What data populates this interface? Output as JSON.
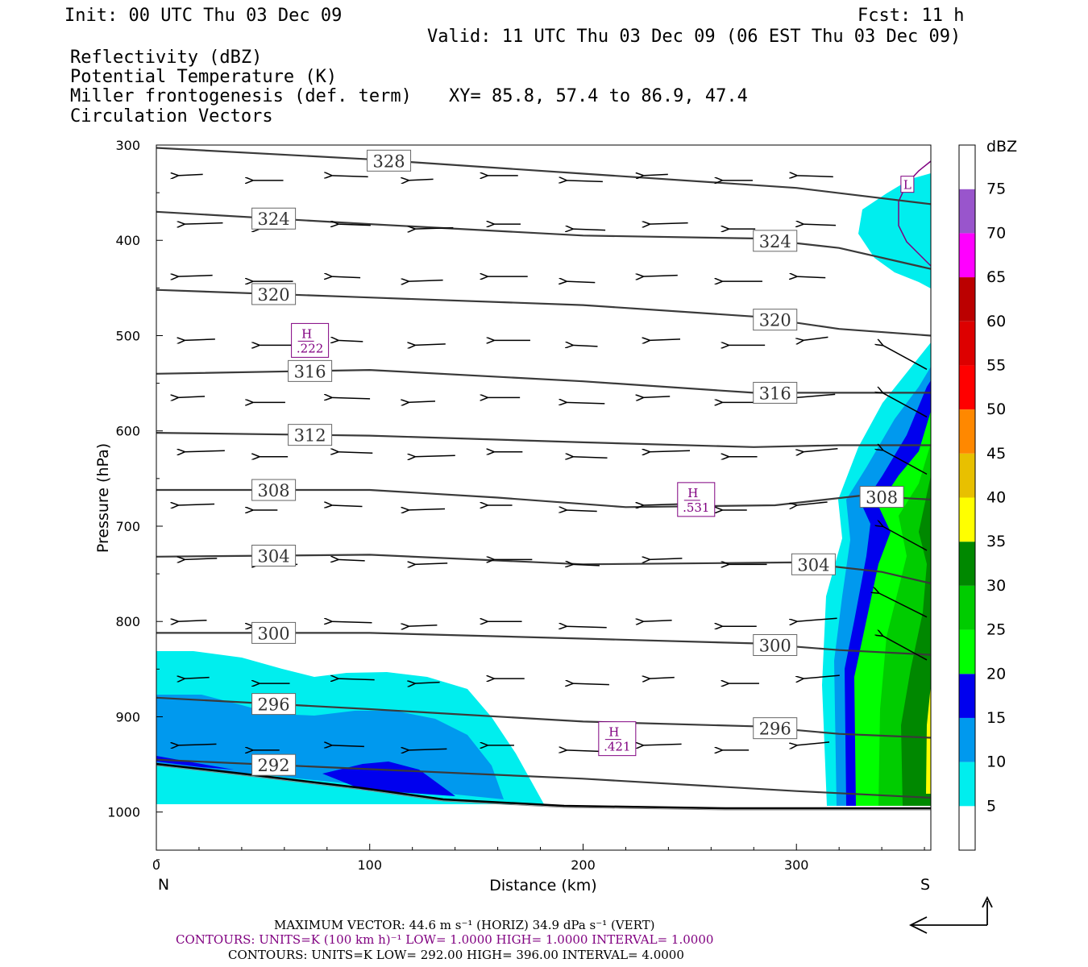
{
  "header": {
    "init": "Init: 00 UTC Thu 03 Dec 09",
    "fcst": "Fcst:   11 h",
    "valid": "Valid: 11 UTC Thu 03 Dec 09 (06 EST Thu 03 Dec 09)",
    "field1": "Reflectivity (dBZ)",
    "field2": "Potential Temperature (K)",
    "field3": "Miller frontogenesis (def. term)",
    "field4": "Circulation Vectors",
    "xy": "XY=  85.8, 57.4 to  86.9, 47.4"
  },
  "colors": {
    "field2": "#606060",
    "field3": "#800080",
    "theta_contour": "#3a3a3a"
  },
  "footer": {
    "max_vector": "MAXIMUM VECTOR:  44.6 m s⁻¹ (HORIZ)          34.9 dPa s⁻¹ (VERT)",
    "contours1": "CONTOURS:  UNITS=K (100 km h)⁻¹  LOW=   1.0000        HIGH=   1.0000        INTERVAL=    1.0000",
    "contours2": "CONTOURS:  UNITS=K  LOW=   292.00         HIGH=   396.00         INTERVAL=    4.0000"
  },
  "chart_data": {
    "type": "contour",
    "xlabel": "Distance (km)",
    "ylabel": "Pressure (hPa)",
    "xlim": [
      0,
      363
    ],
    "ylim": [
      1040,
      300
    ],
    "x_ticks": [
      0,
      100,
      200,
      300
    ],
    "y_ticks": [
      300,
      400,
      500,
      600,
      700,
      800,
      900,
      1000
    ],
    "x_endpoints": {
      "left": "N",
      "right": "S"
    },
    "colorbar": {
      "title": "dBZ",
      "levels": [
        5,
        10,
        15,
        20,
        25,
        30,
        35,
        40,
        45,
        50,
        55,
        60,
        65,
        70,
        75
      ],
      "colors": [
        "#ffffff",
        "#00eeee",
        "#0099ee",
        "#0000ee",
        "#00ff00",
        "#00cc00",
        "#008800",
        "#ffff00",
        "#e8c000",
        "#ff8800",
        "#ff0000",
        "#dd0000",
        "#bb0000",
        "#ff00ff",
        "#9955cc",
        "#ffffff"
      ]
    },
    "theta_contours": [
      {
        "value": 328,
        "label_x": 109,
        "points": [
          [
            0,
            303
          ],
          [
            100,
            315
          ],
          [
            200,
            330
          ],
          [
            300,
            345
          ],
          [
            363,
            362
          ]
        ]
      },
      {
        "value": 324,
        "label_x": 55,
        "extra_label_x": 290,
        "points": [
          [
            0,
            370
          ],
          [
            100,
            383
          ],
          [
            200,
            395
          ],
          [
            280,
            398
          ],
          [
            320,
            408
          ],
          [
            363,
            430
          ]
        ]
      },
      {
        "value": 320,
        "label_x": 55,
        "extra_label_x": 290,
        "points": [
          [
            0,
            452
          ],
          [
            100,
            460
          ],
          [
            200,
            468
          ],
          [
            280,
            480
          ],
          [
            320,
            493
          ],
          [
            363,
            500
          ]
        ]
      },
      {
        "value": 316,
        "label_x": 72,
        "extra_label_x": 290,
        "points": [
          [
            0,
            540
          ],
          [
            100,
            536
          ],
          [
            200,
            548
          ],
          [
            280,
            560
          ],
          [
            363,
            560
          ]
        ]
      },
      {
        "value": 312,
        "label_x": 72,
        "points": [
          [
            0,
            602
          ],
          [
            100,
            605
          ],
          [
            200,
            612
          ],
          [
            280,
            617
          ],
          [
            320,
            615
          ],
          [
            363,
            615
          ]
        ]
      },
      {
        "value": 308,
        "label_x": 55,
        "extra_label_x": 340,
        "points": [
          [
            0,
            662
          ],
          [
            100,
            662
          ],
          [
            160,
            670
          ],
          [
            220,
            680
          ],
          [
            290,
            678
          ],
          [
            330,
            668
          ],
          [
            363,
            672
          ]
        ]
      },
      {
        "value": 304,
        "label_x": 55,
        "extra_label_x": 308,
        "points": [
          [
            0,
            732
          ],
          [
            100,
            730
          ],
          [
            200,
            740
          ],
          [
            300,
            738
          ],
          [
            340,
            748
          ],
          [
            363,
            760
          ]
        ]
      },
      {
        "value": 300,
        "label_x": 55,
        "extra_label_x": 290,
        "points": [
          [
            0,
            812
          ],
          [
            100,
            812
          ],
          [
            200,
            818
          ],
          [
            280,
            823
          ],
          [
            320,
            830
          ],
          [
            363,
            835
          ]
        ]
      },
      {
        "value": 296,
        "label_x": 55,
        "extra_label_x": 290,
        "points": [
          [
            0,
            880
          ],
          [
            100,
            892
          ],
          [
            200,
            905
          ],
          [
            280,
            910
          ],
          [
            320,
            918
          ],
          [
            363,
            922
          ]
        ]
      },
      {
        "value": 292,
        "label_x": 55,
        "points": [
          [
            0,
            945
          ],
          [
            100,
            955
          ],
          [
            200,
            965
          ],
          [
            300,
            978
          ],
          [
            363,
            985
          ]
        ]
      }
    ],
    "frontogenesis_maxima": [
      {
        "label": "H",
        "value": ".222",
        "x": 72,
        "p": 505
      },
      {
        "label": "H",
        "value": ".531",
        "x": 253,
        "p": 672
      },
      {
        "label": "H",
        "value": ".421",
        "x": 216,
        "p": 923
      }
    ],
    "frontogenesis_minima": [
      {
        "label": "L",
        "x": 352,
        "p": 342
      }
    ]
  }
}
